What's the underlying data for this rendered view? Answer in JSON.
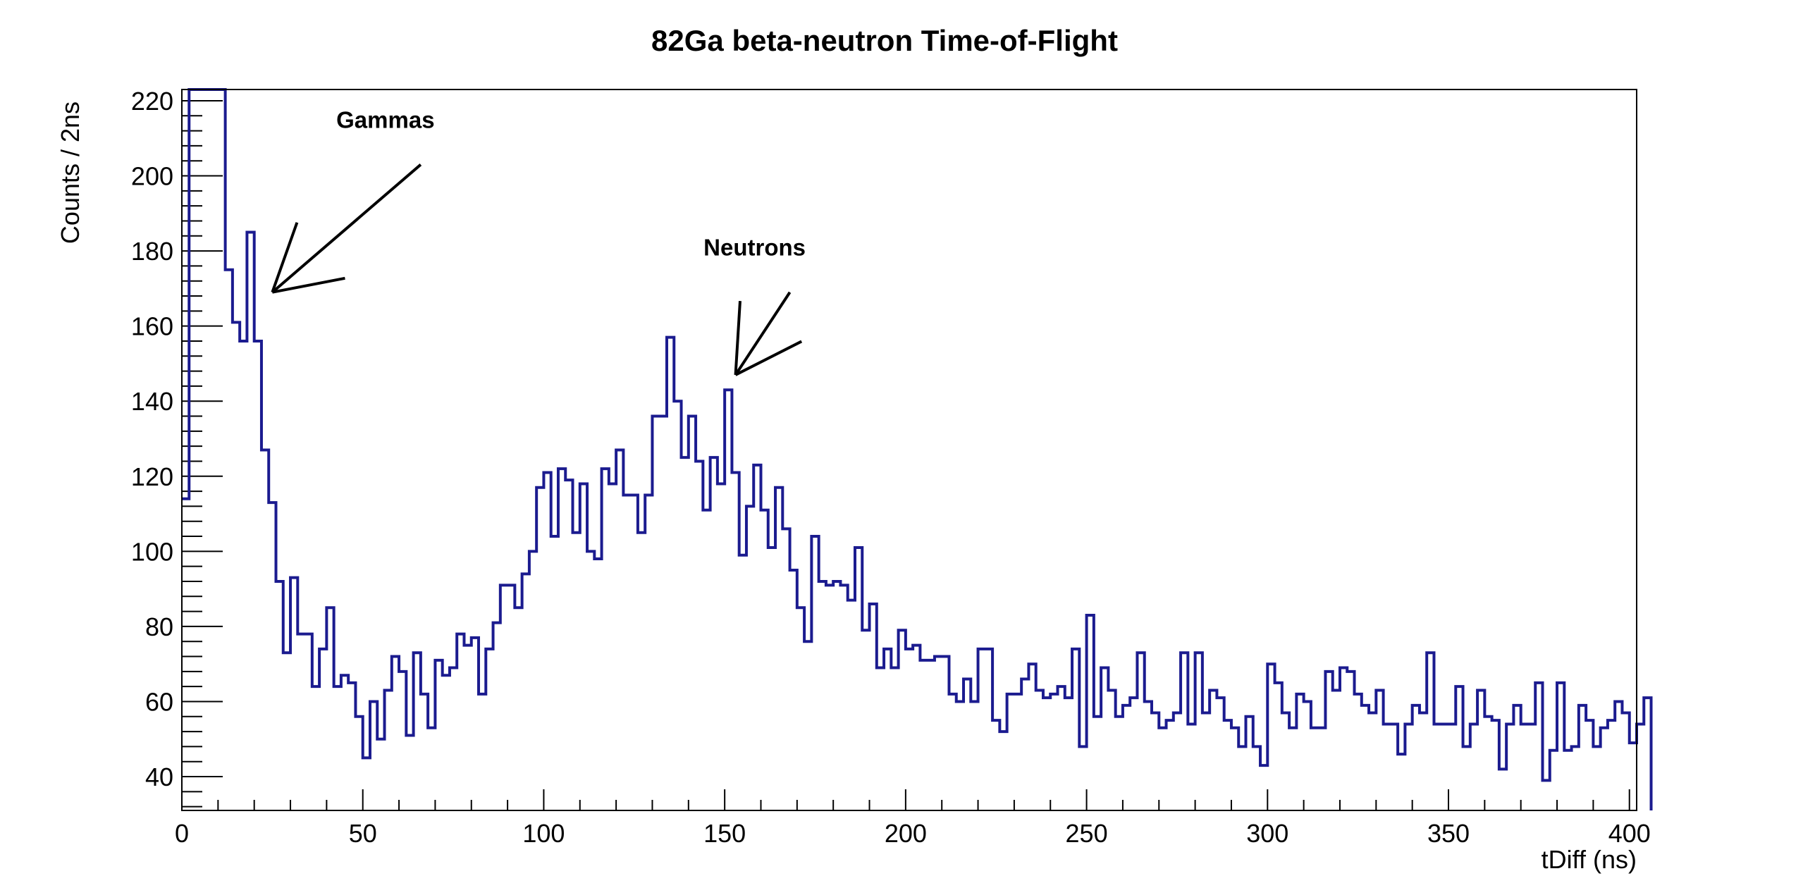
{
  "chart_data": {
    "type": "histogram",
    "title": "82Ga beta-neutron Time-of-Flight",
    "xlabel": "tDiff (ns)",
    "ylabel": "Counts / 2ns",
    "xlim": [
      0,
      402
    ],
    "ylim": [
      31,
      223
    ],
    "x_ticks": [
      0,
      50,
      100,
      150,
      200,
      250,
      300,
      350,
      400
    ],
    "y_ticks": [
      40,
      60,
      80,
      100,
      120,
      140,
      160,
      180,
      200,
      220
    ],
    "bin_width": 2,
    "grid": false,
    "series": [
      {
        "color": "#1b1b8f",
        "values": [
          114,
          223,
          223,
          223,
          223,
          223,
          175,
          161,
          156,
          185,
          156,
          127,
          113,
          92,
          73,
          93,
          78,
          78,
          64,
          74,
          85,
          64,
          67,
          65,
          56,
          45,
          60,
          50,
          63,
          72,
          68,
          51,
          73,
          62,
          53,
          71,
          67,
          69,
          78,
          75,
          77,
          62,
          74,
          81,
          91,
          91,
          85,
          94,
          100,
          117,
          121,
          104,
          122,
          119,
          105,
          118,
          100,
          98,
          122,
          118,
          127,
          115,
          115,
          105,
          115,
          136,
          136,
          157,
          140,
          125,
          136,
          124,
          111,
          125,
          118,
          143,
          121,
          99,
          112,
          123,
          111,
          101,
          117,
          106,
          95,
          85,
          76,
          104,
          92,
          91,
          92,
          91,
          87,
          101,
          79,
          86,
          69,
          74,
          69,
          79,
          74,
          75,
          71,
          71,
          72,
          72,
          62,
          60,
          66,
          60,
          74,
          74,
          55,
          52,
          62,
          62,
          66,
          70,
          63,
          61,
          62,
          64,
          61,
          74,
          48,
          83,
          56,
          69,
          63,
          56,
          59,
          61,
          73,
          60,
          57,
          53,
          55,
          57,
          73,
          54,
          73,
          57,
          63,
          61,
          55,
          53,
          48,
          56,
          48,
          43,
          70,
          65,
          57,
          53,
          62,
          60,
          53,
          53,
          68,
          63,
          69,
          68,
          62,
          59,
          57,
          63,
          54,
          54,
          46,
          54,
          59,
          57,
          73,
          54,
          54,
          54,
          64,
          48,
          54,
          63,
          56,
          55,
          42,
          54,
          59,
          54,
          54,
          65,
          39,
          47,
          65,
          47,
          48,
          59,
          55,
          48,
          53,
          55,
          60,
          57,
          49,
          54,
          61
        ]
      }
    ],
    "annotations": [
      {
        "text": "Gammas",
        "arrow_tip": [
          25,
          169
        ],
        "arrow_tail": [
          66,
          203
        ]
      },
      {
        "text": "Neutrons",
        "arrow_tip": [
          153,
          147
        ],
        "arrow_tail": [
          168,
          169
        ]
      }
    ]
  }
}
